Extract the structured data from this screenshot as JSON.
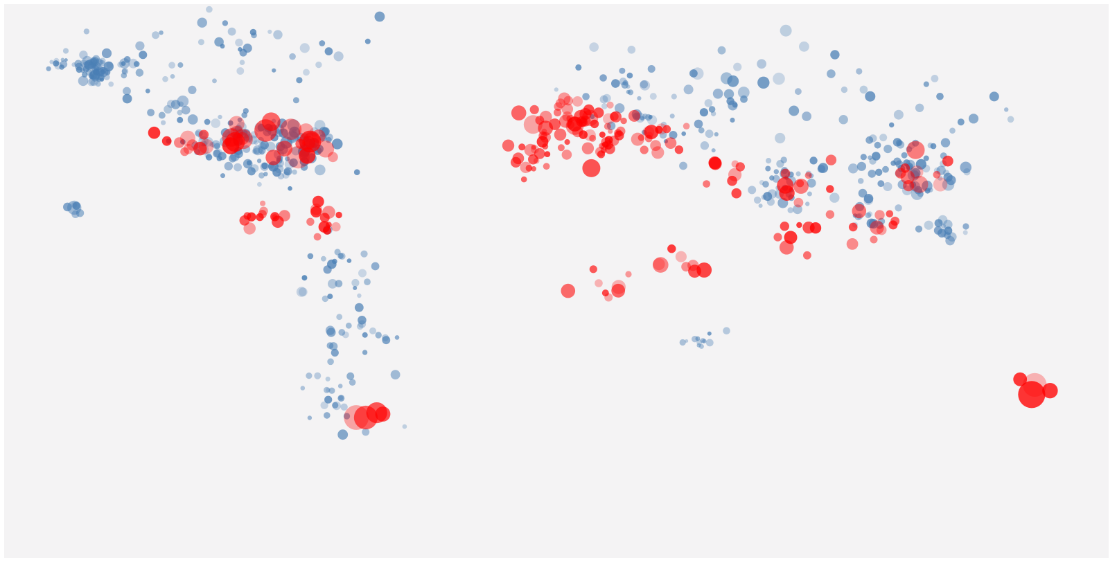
{
  "map": {
    "colors": {
      "background": "#f4f3f4",
      "series_a": "#4a7fb5",
      "series_b": "#ff0000"
    },
    "point_groups": [
      {
        "name": "blue",
        "color": "#4a7fb5",
        "clusters": [
          {
            "lon": -150,
            "lat": 61,
            "n": 55,
            "s": 3,
            "r": 5
          },
          {
            "lon": -142,
            "lat": 63,
            "n": 12,
            "s": 6,
            "r": 5
          },
          {
            "lon": -160,
            "lat": 63,
            "n": 12,
            "s": 3,
            "r": 4
          },
          {
            "lon": -124,
            "lat": 62,
            "n": 14,
            "s": 12,
            "r": 5
          },
          {
            "lon": -100,
            "lat": 66,
            "n": 18,
            "s": 12,
            "r": 5
          },
          {
            "lon": -80,
            "lat": 65,
            "n": 12,
            "s": 12,
            "r": 5
          },
          {
            "lon": -120,
            "lat": 47,
            "n": 15,
            "s": 6,
            "r": 6
          },
          {
            "lon": -112,
            "lat": 40,
            "n": 20,
            "s": 5,
            "r": 6
          },
          {
            "lon": -100,
            "lat": 40,
            "n": 55,
            "s": 7,
            "r": 5
          },
          {
            "lon": -80,
            "lat": 40,
            "n": 40,
            "s": 6,
            "r": 6
          },
          {
            "lon": -90,
            "lat": 33,
            "n": 25,
            "s": 4,
            "r": 5
          },
          {
            "lon": -158,
            "lat": 21,
            "n": 6,
            "s": 1.5,
            "r": 7
          },
          {
            "lon": -73,
            "lat": 4,
            "n": 25,
            "s": 8,
            "r": 5
          },
          {
            "lon": -65,
            "lat": -15,
            "n": 20,
            "s": 6,
            "r": 5
          },
          {
            "lon": -70,
            "lat": -32,
            "n": 25,
            "s": 8,
            "r": 5
          },
          {
            "lon": 20,
            "lat": 55,
            "n": 30,
            "s": 10,
            "r": 5
          },
          {
            "lon": 42,
            "lat": 45,
            "n": 25,
            "s": 8,
            "r": 5
          },
          {
            "lon": 55,
            "lat": 57,
            "n": 15,
            "s": 10,
            "r": 6
          },
          {
            "lon": 80,
            "lat": 57,
            "n": 14,
            "s": 12,
            "r": 6
          },
          {
            "lon": 75,
            "lat": 28,
            "n": 40,
            "s": 7,
            "r": 5
          },
          {
            "lon": 110,
            "lat": 35,
            "n": 40,
            "s": 9,
            "r": 5
          },
          {
            "lon": 120,
            "lat": 30,
            "n": 25,
            "s": 6,
            "r": 6
          },
          {
            "lon": 126,
            "lat": 14,
            "n": 15,
            "s": 3,
            "r": 5
          },
          {
            "lon": 47,
            "lat": -18,
            "n": 12,
            "s": 3,
            "r": 4
          },
          {
            "lon": 130,
            "lat": 50,
            "n": 12,
            "s": 12,
            "r": 5
          },
          {
            "lon": 98,
            "lat": 20,
            "n": 15,
            "s": 5,
            "r": 5
          }
        ]
      },
      {
        "name": "red",
        "color": "#ff0000",
        "clusters": [
          {
            "lon": 2,
            "lat": 48,
            "n": 28,
            "s": 7,
            "r": 9
          },
          {
            "lon": 15,
            "lat": 45,
            "n": 30,
            "s": 6,
            "r": 6
          },
          {
            "lon": 30,
            "lat": 40,
            "n": 18,
            "s": 6,
            "r": 7
          },
          {
            "lon": -5,
            "lat": 38,
            "n": 15,
            "s": 4,
            "r": 6
          },
          {
            "lon": -8,
            "lat": 33,
            "n": 8,
            "s": 3,
            "r": 6
          },
          {
            "lon": 55,
            "lat": 30,
            "n": 8,
            "s": 8,
            "r": 8
          },
          {
            "lon": 78,
            "lat": 28,
            "n": 10,
            "s": 6,
            "r": 8
          },
          {
            "lon": 77,
            "lat": 13,
            "n": 8,
            "s": 4,
            "r": 7
          },
          {
            "lon": 100,
            "lat": 15,
            "n": 10,
            "s": 6,
            "r": 8
          },
          {
            "lon": 118,
            "lat": 32,
            "n": 10,
            "s": 6,
            "r": 9
          },
          {
            "lon": -122,
            "lat": 40,
            "n": 10,
            "s": 4,
            "r": 10
          },
          {
            "lon": -100,
            "lat": 40,
            "n": 10,
            "s": 6,
            "r": 11
          },
          {
            "lon": -80,
            "lat": 38,
            "n": 12,
            "s": 5,
            "r": 11
          },
          {
            "lon": -95,
            "lat": 18,
            "n": 12,
            "s": 5,
            "r": 6
          },
          {
            "lon": -75,
            "lat": 18,
            "n": 12,
            "s": 5,
            "r": 7
          },
          {
            "lon": -60,
            "lat": -38,
            "n": 4,
            "s": 3,
            "r": 12
          },
          {
            "lon": 152,
            "lat": -32,
            "n": 4,
            "s": 4,
            "r": 15
          },
          {
            "lon": 40,
            "lat": 5,
            "n": 8,
            "s": 3,
            "r": 8
          },
          {
            "lon": 12,
            "lat": -3,
            "n": 8,
            "s": 6,
            "r": 7
          }
        ]
      }
    ]
  }
}
